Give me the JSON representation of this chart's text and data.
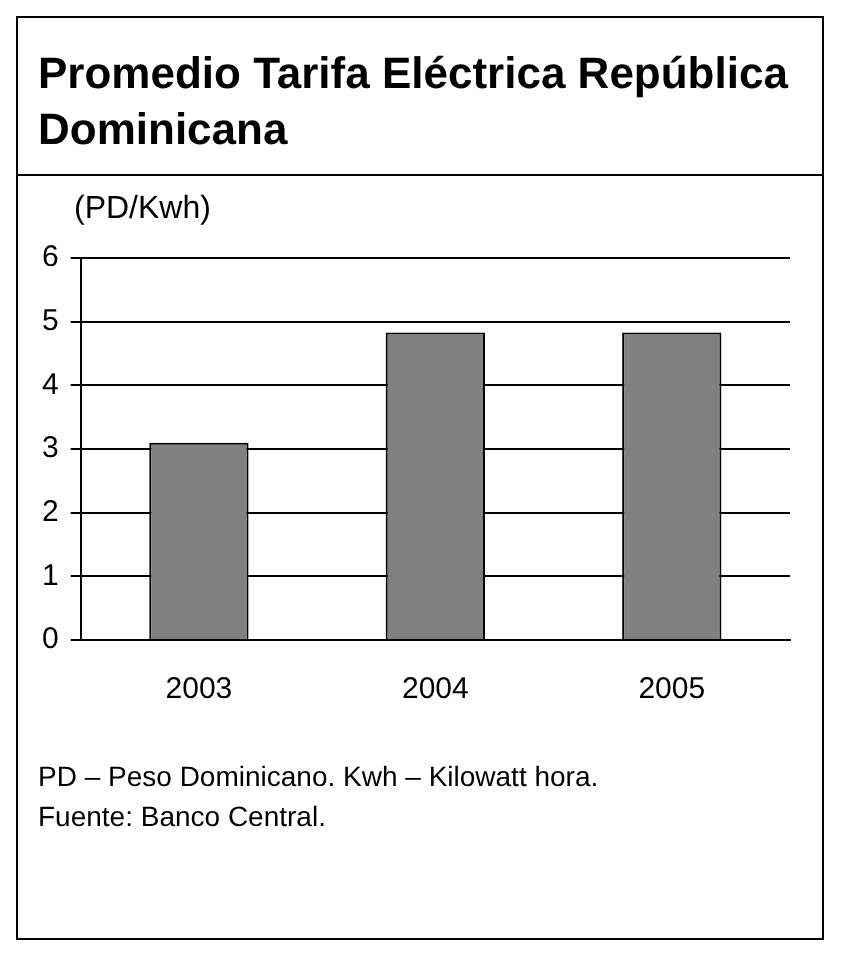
{
  "chart_data": {
    "type": "bar",
    "title": "Promedio Tarifa Eléctrica República Dominicana",
    "ylabel": "(PD/Kwh)",
    "categories": [
      "2003",
      "2004",
      "2005"
    ],
    "values": [
      3.1,
      4.83,
      4.83
    ],
    "color": "#808080",
    "ylim": [
      0,
      6
    ],
    "yticks": [
      0,
      1,
      2,
      3,
      4,
      5,
      6
    ],
    "grid": "y",
    "legend": false,
    "annotations": [
      "PD – Peso Dominicano. Kwh – Kilowatt hora.",
      "Fuente: Banco Central."
    ]
  }
}
